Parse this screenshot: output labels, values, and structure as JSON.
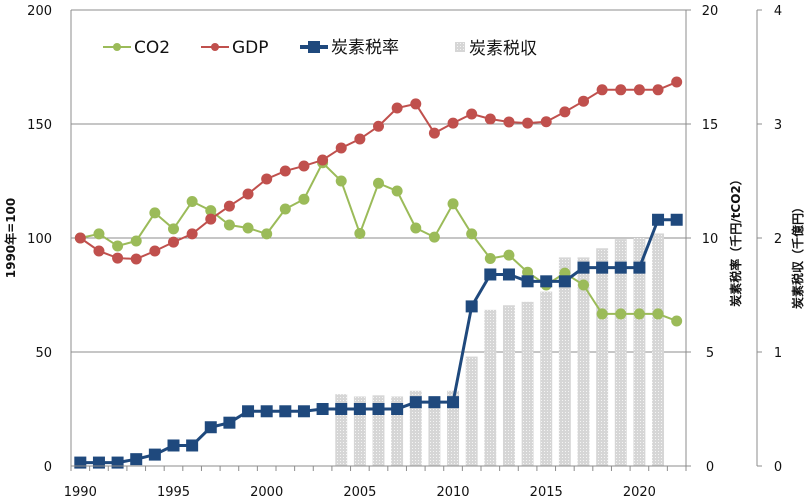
{
  "chart_data": {
    "type": "line+bar",
    "title": "",
    "x": [
      1990,
      1991,
      1992,
      1993,
      1994,
      1995,
      1996,
      1997,
      1998,
      1999,
      2000,
      2001,
      2002,
      2003,
      2004,
      2005,
      2006,
      2007,
      2008,
      2009,
      2010,
      2011,
      2012,
      2013,
      2014,
      2015,
      2016,
      2017,
      2018,
      2019,
      2020,
      2021,
      2022
    ],
    "x_tick_labels": [
      "1990",
      "1995",
      "2000",
      "2005",
      "2010",
      "2015",
      "2020"
    ],
    "y_left": {
      "label": "1990年=100",
      "range": [
        0,
        200
      ],
      "ticks": [
        "0",
        "50",
        "100",
        "150",
        "200"
      ]
    },
    "y_right1": {
      "label": "炭素税率（千円/tCO2）",
      "range": [
        0,
        20
      ],
      "ticks": [
        "0",
        "5",
        "10",
        "15",
        "20"
      ]
    },
    "y_right2": {
      "label": "炭素税収（千億円）",
      "range": [
        0,
        4
      ],
      "ticks": [
        "0",
        "1",
        "2",
        "3",
        "4"
      ]
    },
    "grid": true,
    "legend": "top",
    "series": [
      {
        "name": "CO2",
        "type": "line",
        "axis": "left",
        "color": "#9bbb59",
        "marker": "circle",
        "values": [
          100,
          101.8,
          96.5,
          98.7,
          111,
          104,
          116,
          112,
          105.7,
          104.4,
          101.8,
          112.7,
          117,
          133,
          125,
          102,
          124,
          120.6,
          104.4,
          100.4,
          115,
          101.8,
          91,
          92.5,
          85,
          79.4,
          84.6,
          79.4,
          66.7,
          66.7,
          66.7,
          66.7,
          63.6
        ]
      },
      {
        "name": "GDP",
        "type": "line",
        "axis": "left",
        "color": "#c0504d",
        "marker": "circle",
        "values": [
          100,
          94.3,
          91.2,
          90.8,
          94.3,
          98.2,
          101.8,
          108.3,
          114,
          119.3,
          125.9,
          129.4,
          131.6,
          134.2,
          139.5,
          143.4,
          149,
          157,
          158.8,
          146,
          150.4,
          154.4,
          152.2,
          150.9,
          150.4,
          151,
          155.3,
          160,
          165,
          165,
          165,
          165,
          168.4
        ]
      },
      {
        "name": "炭素税率",
        "type": "line",
        "axis": "right1",
        "color": "#1f497d",
        "marker": "square",
        "values": [
          0.15,
          0.15,
          0.15,
          0.3,
          0.5,
          0.9,
          0.9,
          1.7,
          1.9,
          2.4,
          2.4,
          2.4,
          2.4,
          2.5,
          2.5,
          2.5,
          2.5,
          2.5,
          2.8,
          2.8,
          2.8,
          7.0,
          8.4,
          8.4,
          8.1,
          8.1,
          8.1,
          8.7,
          8.7,
          8.7,
          8.7,
          10.8,
          10.8
        ]
      },
      {
        "name": "炭素税収",
        "type": "bar",
        "axis": "right2",
        "color": "#d0d0d0",
        "values": [
          null,
          null,
          null,
          null,
          null,
          null,
          null,
          null,
          null,
          null,
          null,
          null,
          null,
          null,
          0.63,
          0.61,
          0.62,
          0.61,
          0.66,
          0.6,
          0.66,
          0.96,
          1.37,
          1.41,
          1.44,
          1.53,
          1.83,
          1.83,
          1.91,
          1.99,
          2.0,
          2.04,
          null
        ]
      }
    ]
  }
}
